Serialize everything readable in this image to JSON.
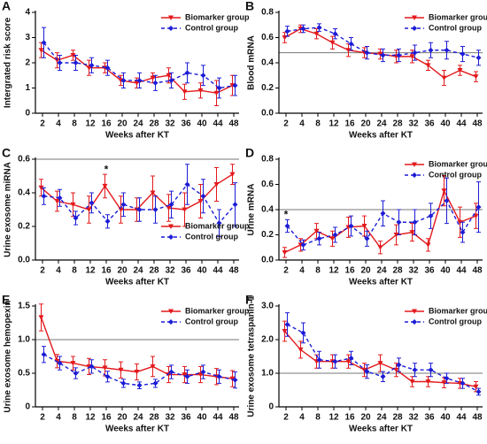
{
  "chart_data": [
    {
      "type": "line",
      "label": "A",
      "ylabel": "Intergrated risk score",
      "xlabel": "Weeks after KT",
      "categories": [
        "2",
        "4",
        "8",
        "12",
        "16",
        "20",
        "24",
        "28",
        "32",
        "36",
        "40",
        "44",
        "48"
      ],
      "ylim": [
        0,
        4
      ],
      "yticks": [
        0,
        1,
        2,
        3,
        4
      ],
      "legend": "upper right",
      "series": [
        {
          "name": "Biomarker group",
          "color": "#e3191c",
          "dashed": false,
          "values": [
            2.5,
            2.1,
            2.3,
            1.8,
            1.8,
            1.3,
            1.2,
            1.4,
            1.5,
            0.85,
            0.9,
            0.8,
            1.1
          ],
          "errors": [
            0.3,
            0.3,
            0.2,
            0.3,
            0.2,
            0.2,
            0.2,
            0.2,
            0.3,
            0.3,
            0.3,
            0.5,
            0.4
          ]
        },
        {
          "name": "Control group",
          "color": "#1c1cd6",
          "dashed": true,
          "values": [
            2.8,
            2.0,
            2.0,
            1.9,
            1.8,
            1.3,
            1.3,
            1.2,
            1.3,
            1.6,
            1.5,
            1.0,
            1.1
          ],
          "errors": [
            0.6,
            0.3,
            0.3,
            0.3,
            0.3,
            0.3,
            0.3,
            0.3,
            0.3,
            0.4,
            0.4,
            0.4,
            0.4
          ]
        }
      ]
    },
    {
      "type": "line",
      "label": "B",
      "ylabel": "Blood mRNA",
      "xlabel": "Weeks after KT",
      "categories": [
        "2",
        "4",
        "8",
        "12",
        "16",
        "20",
        "24",
        "28",
        "32",
        "36",
        "40",
        "44",
        "48"
      ],
      "ylim": [
        0,
        0.8
      ],
      "yticks": [
        {
          "value": 0,
          "label": "0.0"
        },
        0.2,
        0.4,
        0.6,
        0.8
      ],
      "hline": 0.48,
      "legend": "upper right",
      "series": [
        {
          "name": "Biomarker group",
          "color": "#e3191c",
          "dashed": false,
          "values": [
            0.6,
            0.67,
            0.63,
            0.56,
            0.5,
            0.48,
            0.47,
            0.45,
            0.45,
            0.38,
            0.28,
            0.34,
            0.29
          ],
          "errors": [
            0.04,
            0.03,
            0.04,
            0.05,
            0.05,
            0.04,
            0.04,
            0.05,
            0.05,
            0.04,
            0.06,
            0.04,
            0.04
          ]
        },
        {
          "name": "Control group",
          "color": "#1c1cd6",
          "dashed": true,
          "values": [
            0.65,
            0.67,
            0.68,
            0.63,
            0.55,
            0.48,
            0.46,
            0.46,
            0.48,
            0.5,
            0.5,
            0.47,
            0.44
          ],
          "errors": [
            0.04,
            0.03,
            0.03,
            0.04,
            0.05,
            0.05,
            0.05,
            0.05,
            0.06,
            0.06,
            0.07,
            0.06,
            0.06
          ]
        }
      ]
    },
    {
      "type": "line",
      "label": "C",
      "ylabel": "Urine exosome miRNA",
      "xlabel": "Weeks after KT",
      "categories": [
        "2",
        "4",
        "8",
        "12",
        "16",
        "20",
        "24",
        "28",
        "32",
        "36",
        "40",
        "44",
        "48"
      ],
      "ylim": [
        0,
        0.6
      ],
      "yticks": [
        {
          "value": 0,
          "label": "0.0"
        },
        0.2,
        0.4,
        0.6
      ],
      "hline": 0.6,
      "legend": "lower right",
      "annotations": [
        {
          "text": "*",
          "x": "16"
        }
      ],
      "series": [
        {
          "name": "Biomarker group",
          "color": "#e3191c",
          "dashed": false,
          "values": [
            0.43,
            0.35,
            0.33,
            0.3,
            0.44,
            0.3,
            0.3,
            0.4,
            0.31,
            0.3,
            0.35,
            0.45,
            0.51
          ],
          "errors": [
            0.05,
            0.06,
            0.07,
            0.08,
            0.07,
            0.08,
            0.07,
            0.1,
            0.08,
            0.1,
            0.1,
            0.1,
            0.06
          ]
        },
        {
          "name": "Control group",
          "color": "#1c1cd6",
          "dashed": true,
          "values": [
            0.38,
            0.37,
            0.25,
            0.34,
            0.23,
            0.33,
            0.3,
            0.3,
            0.33,
            0.45,
            0.38,
            0.22,
            0.33
          ],
          "errors": [
            0.05,
            0.05,
            0.04,
            0.06,
            0.04,
            0.07,
            0.07,
            0.08,
            0.08,
            0.12,
            0.1,
            0.08,
            0.13
          ]
        }
      ]
    },
    {
      "type": "line",
      "label": "D",
      "ylabel": "Urine mRNA",
      "xlabel": "Weeks after KT",
      "categories": [
        "2",
        "4",
        "8",
        "12",
        "16",
        "20",
        "24",
        "28",
        "32",
        "36",
        "40",
        "44",
        "48"
      ],
      "ylim": [
        0,
        0.8
      ],
      "yticks": [
        {
          "value": 0,
          "label": "0.0"
        },
        0.2,
        0.4,
        0.6,
        0.8
      ],
      "hline": 0.4,
      "legend": "upper right",
      "annotations": [
        {
          "text": "*",
          "x": "2"
        }
      ],
      "series": [
        {
          "name": "Biomarker group",
          "color": "#e3191c",
          "dashed": false,
          "values": [
            0.06,
            0.12,
            0.23,
            0.17,
            0.26,
            0.27,
            0.1,
            0.2,
            0.22,
            0.12,
            0.55,
            0.3,
            0.35
          ],
          "errors": [
            0.04,
            0.05,
            0.06,
            0.06,
            0.08,
            0.08,
            0.05,
            0.08,
            0.07,
            0.05,
            0.12,
            0.12,
            0.1
          ]
        },
        {
          "name": "Control group",
          "color": "#1c1cd6",
          "dashed": true,
          "values": [
            0.27,
            0.12,
            0.17,
            0.2,
            0.27,
            0.17,
            0.37,
            0.3,
            0.3,
            0.35,
            0.47,
            0.22,
            0.42
          ],
          "errors": [
            0.05,
            0.04,
            0.05,
            0.06,
            0.08,
            0.06,
            0.1,
            0.1,
            0.1,
            0.1,
            0.18,
            0.08,
            0.2
          ]
        }
      ]
    },
    {
      "type": "line",
      "label": "E",
      "ylabel": "Urine exosome hemopexin",
      "xlabel": "Weeks after KT",
      "categories": [
        "2",
        "4",
        "8",
        "12",
        "16",
        "20",
        "24",
        "28",
        "32",
        "36",
        "40",
        "44",
        "48"
      ],
      "ylim": [
        0,
        1.5
      ],
      "yticks": [
        0,
        0.5,
        {
          "value": 1,
          "label": "1.0"
        },
        1.5
      ],
      "hline": 1,
      "legend": "upper right",
      "series": [
        {
          "name": "Biomarker group",
          "color": "#e3191c",
          "dashed": false,
          "values": [
            1.33,
            0.68,
            0.65,
            0.6,
            0.58,
            0.55,
            0.52,
            0.6,
            0.48,
            0.48,
            0.48,
            0.45,
            0.42
          ],
          "errors": [
            0.2,
            0.1,
            0.1,
            0.12,
            0.12,
            0.12,
            0.12,
            0.15,
            0.12,
            0.12,
            0.12,
            0.12,
            0.12
          ]
        },
        {
          "name": "Control group",
          "color": "#1c1cd6",
          "dashed": true,
          "values": [
            0.78,
            0.65,
            0.5,
            0.6,
            0.45,
            0.35,
            0.32,
            0.35,
            0.52,
            0.45,
            0.52,
            0.45,
            0.4
          ],
          "errors": [
            0.12,
            0.1,
            0.08,
            0.1,
            0.08,
            0.06,
            0.05,
            0.06,
            0.1,
            0.1,
            0.1,
            0.1,
            0.12
          ]
        }
      ]
    },
    {
      "type": "line",
      "label": "F",
      "ylabel": "Urine exosome tetraspanin-1",
      "xlabel": "Weeks after KT",
      "categories": [
        "2",
        "4",
        "8",
        "12",
        "16",
        "20",
        "24",
        "28",
        "32",
        "36",
        "40",
        "44",
        "48"
      ],
      "ylim": [
        0,
        3
      ],
      "yticks": [
        0,
        {
          "value": 1,
          "label": "1.0"
        },
        {
          "value": 2,
          "label": "2.0"
        },
        {
          "value": 3,
          "label": "3.0"
        }
      ],
      "hline": 1,
      "legend": "upper right",
      "series": [
        {
          "name": "Biomarker group",
          "color": "#e3191c",
          "dashed": false,
          "values": [
            2.25,
            1.7,
            1.35,
            1.35,
            1.35,
            1.1,
            1.3,
            1.1,
            0.75,
            0.75,
            0.72,
            0.7,
            0.6
          ],
          "errors": [
            0.3,
            0.25,
            0.2,
            0.2,
            0.2,
            0.2,
            0.25,
            0.2,
            0.15,
            0.15,
            0.15,
            0.15,
            0.15
          ]
        },
        {
          "name": "Control group",
          "color": "#1c1cd6",
          "dashed": true,
          "values": [
            2.45,
            2.2,
            1.4,
            1.35,
            1.45,
            1.05,
            0.9,
            1.25,
            1.1,
            1.1,
            0.85,
            0.7,
            0.45
          ],
          "errors": [
            0.35,
            0.3,
            0.25,
            0.2,
            0.2,
            0.2,
            0.15,
            0.2,
            0.2,
            0.2,
            0.15,
            0.15,
            0.1
          ]
        }
      ]
    }
  ]
}
